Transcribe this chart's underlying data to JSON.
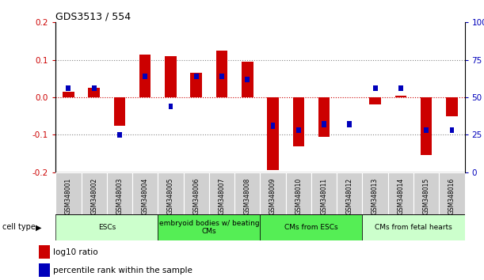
{
  "title": "GDS3513 / 554",
  "samples": [
    "GSM348001",
    "GSM348002",
    "GSM348003",
    "GSM348004",
    "GSM348005",
    "GSM348006",
    "GSM348007",
    "GSM348008",
    "GSM348009",
    "GSM348010",
    "GSM348011",
    "GSM348012",
    "GSM348013",
    "GSM348014",
    "GSM348015",
    "GSM348016"
  ],
  "log10_ratio": [
    0.015,
    0.025,
    -0.075,
    0.115,
    0.11,
    0.065,
    0.125,
    0.095,
    -0.195,
    -0.13,
    -0.105,
    0.0,
    -0.02,
    0.005,
    -0.155,
    -0.05
  ],
  "percentile_rank": [
    56,
    56,
    25,
    64,
    44,
    64,
    64,
    62,
    31,
    28,
    32,
    32,
    56,
    56,
    28,
    28
  ],
  "cell_type_groups": [
    {
      "label": "ESCs",
      "start": 0,
      "end": 3,
      "color": "#ccffcc"
    },
    {
      "label": "embryoid bodies w/ beating\nCMs",
      "start": 4,
      "end": 7,
      "color": "#55ee55"
    },
    {
      "label": "CMs from ESCs",
      "start": 8,
      "end": 11,
      "color": "#55ee55"
    },
    {
      "label": "CMs from fetal hearts",
      "start": 12,
      "end": 15,
      "color": "#ccffcc"
    }
  ],
  "ylim_left": [
    -0.2,
    0.2
  ],
  "ylim_right": [
    0,
    100
  ],
  "yticks_left": [
    -0.2,
    -0.1,
    0.0,
    0.1,
    0.2
  ],
  "yticks_right": [
    0,
    25,
    50,
    75,
    100
  ],
  "red_color": "#cc0000",
  "blue_color": "#0000bb",
  "bg_color": "#ffffff",
  "tick_label_color_left": "#cc0000",
  "tick_label_color_right": "#0000bb",
  "legend_red": "log10 ratio",
  "legend_blue": "percentile rank within the sample",
  "gray_cell": "#d0d0d0"
}
